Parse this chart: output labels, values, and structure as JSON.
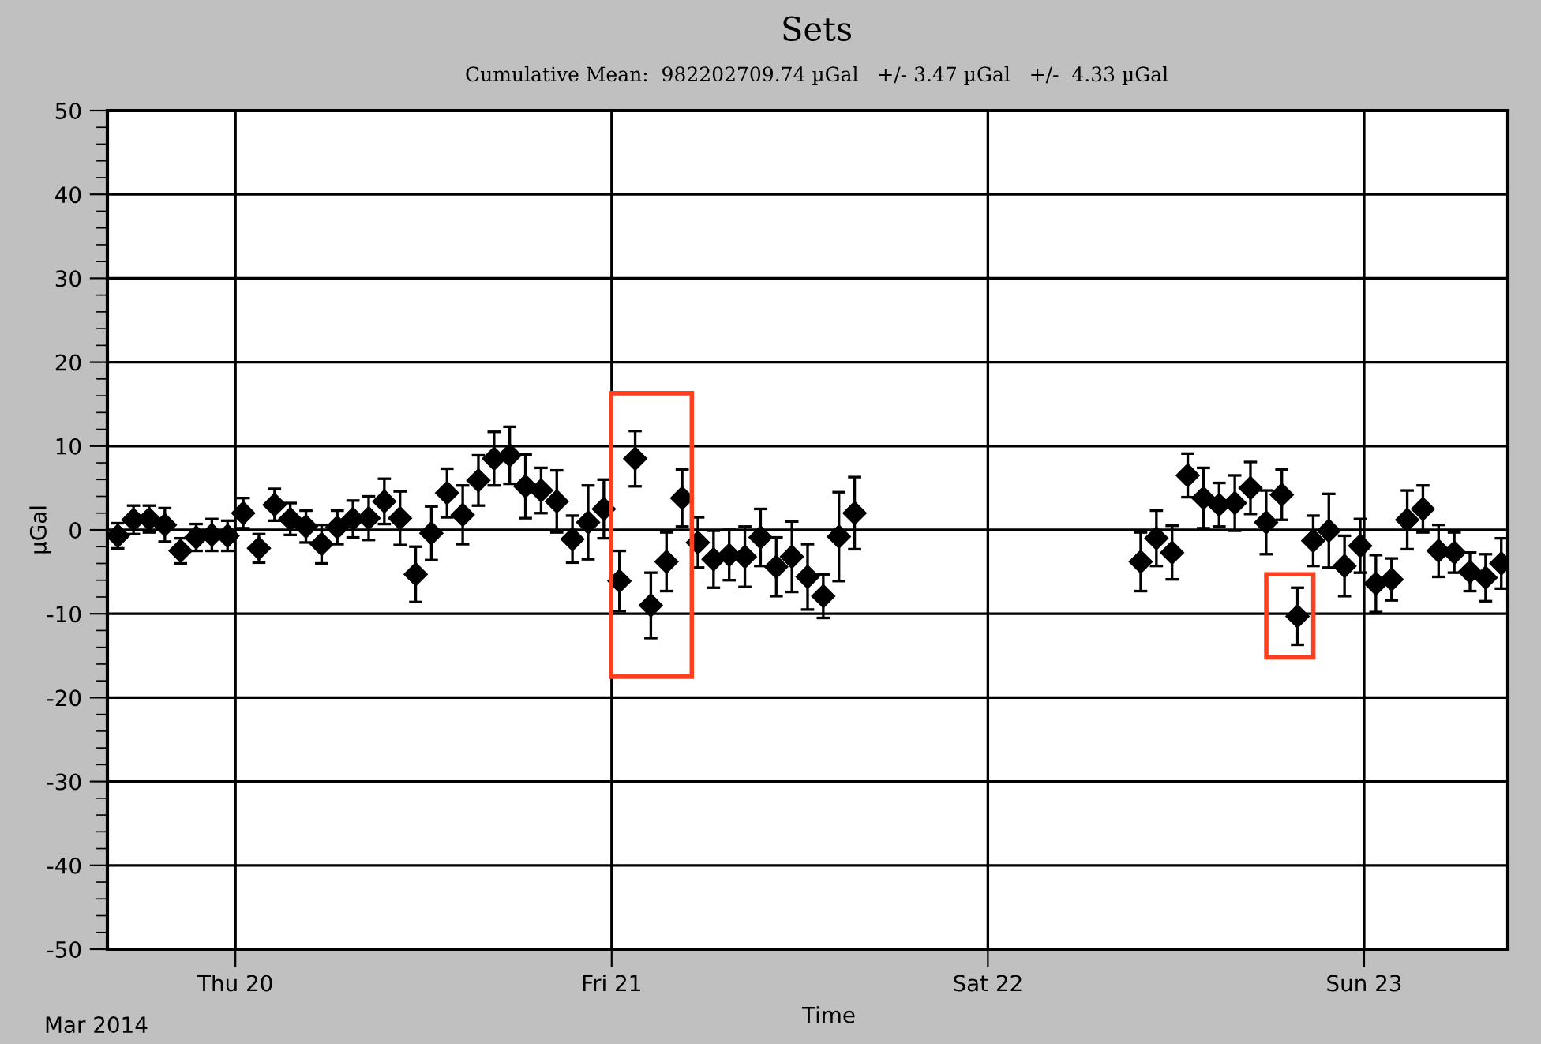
{
  "chart_data": {
    "type": "scatter",
    "title": "Sets",
    "subtitle": "Cumulative Mean:  982202709.74 µGal   +/- 3.47 µGal   +/-  4.33 µGal",
    "xlabel": "Time",
    "ylabel": "µGal",
    "annotations": [
      "Mar 2014"
    ],
    "x": [
      "2014-03-19T16:30",
      "2014-03-19T17:30",
      "2014-03-19T18:30",
      "2014-03-19T19:30",
      "2014-03-19T20:30",
      "2014-03-19T21:30",
      "2014-03-19T22:30",
      "2014-03-19T23:30",
      "2014-03-20T00:30",
      "2014-03-20T01:30",
      "2014-03-20T02:30",
      "2014-03-20T03:30",
      "2014-03-20T04:30",
      "2014-03-20T05:30",
      "2014-03-20T06:30",
      "2014-03-20T07:30",
      "2014-03-20T08:30",
      "2014-03-20T09:30",
      "2014-03-20T10:30",
      "2014-03-20T11:30",
      "2014-03-20T12:30",
      "2014-03-20T13:30",
      "2014-03-20T14:30",
      "2014-03-20T15:30",
      "2014-03-20T16:30",
      "2014-03-20T17:30",
      "2014-03-20T18:30",
      "2014-03-20T19:30",
      "2014-03-20T20:30",
      "2014-03-20T21:30",
      "2014-03-20T22:30",
      "2014-03-20T23:30",
      "2014-03-21T00:30",
      "2014-03-21T01:30",
      "2014-03-21T02:30",
      "2014-03-21T03:30",
      "2014-03-21T04:30",
      "2014-03-21T05:30",
      "2014-03-21T06:30",
      "2014-03-21T07:30",
      "2014-03-21T08:30",
      "2014-03-21T09:30",
      "2014-03-21T10:30",
      "2014-03-21T11:30",
      "2014-03-21T12:30",
      "2014-03-21T13:30",
      "2014-03-21T14:30",
      "2014-03-21T15:30",
      "2014-03-22T09:45",
      "2014-03-22T10:45",
      "2014-03-22T11:45",
      "2014-03-22T12:45",
      "2014-03-22T13:45",
      "2014-03-22T14:45",
      "2014-03-22T15:45",
      "2014-03-22T16:45",
      "2014-03-22T17:45",
      "2014-03-22T18:45",
      "2014-03-22T19:45",
      "2014-03-22T20:45",
      "2014-03-22T21:45",
      "2014-03-22T22:45",
      "2014-03-22T23:45",
      "2014-03-23T00:45",
      "2014-03-23T01:45",
      "2014-03-23T02:45",
      "2014-03-23T03:45",
      "2014-03-23T04:45",
      "2014-03-23T05:45",
      "2014-03-23T06:45",
      "2014-03-23T07:45",
      "2014-03-23T08:45"
    ],
    "series": [
      {
        "color": "#000000",
        "values": [
          -0.7,
          1.2,
          1.3,
          0.6,
          -2.5,
          -0.9,
          -0.6,
          -0.7,
          2.0,
          -2.2,
          3.0,
          1.3,
          0.4,
          -1.7,
          0.3,
          1.3,
          1.4,
          3.4,
          1.4,
          -5.3,
          -0.4,
          4.4,
          1.8,
          5.9,
          8.5,
          8.9,
          5.2,
          4.7,
          3.4,
          -1.1,
          0.9,
          2.5,
          -6.1,
          8.5,
          -9.0,
          -3.8,
          3.8,
          -1.5,
          -3.5,
          -3.0,
          -3.2,
          -0.9,
          -4.4,
          -3.2,
          -5.6,
          -7.9,
          -0.8,
          2.0,
          -3.8,
          -1.0,
          -2.7,
          6.5,
          3.8,
          3.0,
          3.2,
          5.0,
          0.9,
          4.2,
          -10.3,
          -1.3,
          -0.1,
          -4.3,
          -1.9,
          -6.4,
          -5.9,
          1.2,
          2.5,
          -2.5,
          -2.7,
          -5.0,
          -5.7,
          -4.0
        ],
        "errors": [
          1.5,
          1.7,
          1.6,
          2.0,
          1.5,
          1.6,
          1.9,
          1.8,
          1.8,
          1.7,
          1.9,
          1.9,
          1.9,
          2.3,
          2.0,
          2.2,
          2.6,
          2.7,
          3.2,
          3.3,
          3.2,
          2.9,
          3.5,
          3.0,
          3.2,
          3.4,
          3.8,
          2.7,
          3.7,
          2.8,
          4.4,
          3.5,
          3.6,
          3.3,
          3.9,
          3.5,
          3.4,
          3.0,
          3.4,
          3.0,
          3.6,
          3.4,
          3.5,
          4.2,
          3.9,
          2.6,
          5.3,
          4.3,
          3.5,
          3.3,
          3.2,
          2.6,
          3.6,
          2.6,
          3.3,
          3.1,
          3.8,
          3.0,
          3.4,
          3.0,
          4.4,
          3.6,
          3.2,
          3.4,
          2.5,
          3.5,
          2.8,
          3.1,
          2.4,
          2.3,
          2.8,
          3.0
        ]
      }
    ],
    "marker": "diamond",
    "grid": true,
    "legend": false,
    "xlim": [
      "2014-03-19T15:50",
      "2014-03-23T09:10"
    ],
    "xticks": [
      {
        "value": "2014-03-20",
        "label": "Thu 20"
      },
      {
        "value": "2014-03-21",
        "label": "Fri 21"
      },
      {
        "value": "2014-03-22",
        "label": "Sat 22"
      },
      {
        "value": "2014-03-23",
        "label": "Sun 23"
      }
    ],
    "ylim": [
      -50,
      50
    ],
    "yticks": [
      -50,
      -40,
      -30,
      -20,
      -10,
      0,
      10,
      20,
      30,
      40,
      50
    ]
  }
}
